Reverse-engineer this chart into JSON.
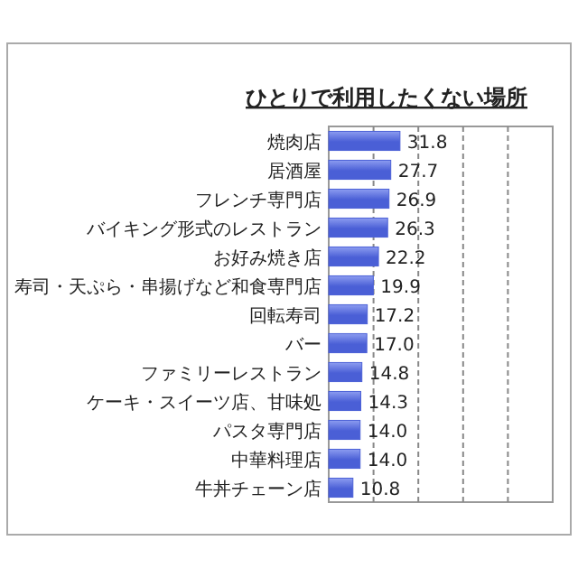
{
  "chart_data": {
    "type": "bar",
    "orientation": "horizontal",
    "title": "ひとりで利用したくない場所",
    "categories": [
      "焼肉店",
      "居酒屋",
      "フレンチ専門店",
      "バイキング形式のレストラン",
      "お好み焼き店",
      "寿司・天ぷら・串揚げなど和食専門店",
      "回転寿司",
      "バー",
      "ファミリーレストラン",
      "ケーキ・スイーツ店、甘味処",
      "パスタ専門店",
      "中華料理店",
      "牛丼チェーン店"
    ],
    "values": [
      31.8,
      27.7,
      26.9,
      26.3,
      22.2,
      19.9,
      17.2,
      17.0,
      14.8,
      14.3,
      14.0,
      14.0,
      10.8
    ],
    "color": "#4a5fd6",
    "xlim": [
      0,
      100
    ],
    "xticks": [
      {
        "value": 0,
        "label": null
      },
      {
        "value": 20,
        "label": null
      },
      {
        "value": 40,
        "label": null
      },
      {
        "value": 60,
        "label": null
      },
      {
        "value": 80,
        "label": null
      },
      {
        "value": 100,
        "label": null
      }
    ],
    "tick_labels": "y",
    "grid": "x",
    "value_labels": [
      "31.8",
      "27.7",
      "26.9",
      "26.3",
      "22.2",
      "19.9",
      "17.2",
      "17.0",
      "14.8",
      "14.3",
      "14.0",
      "14.0",
      "10.8"
    ]
  }
}
